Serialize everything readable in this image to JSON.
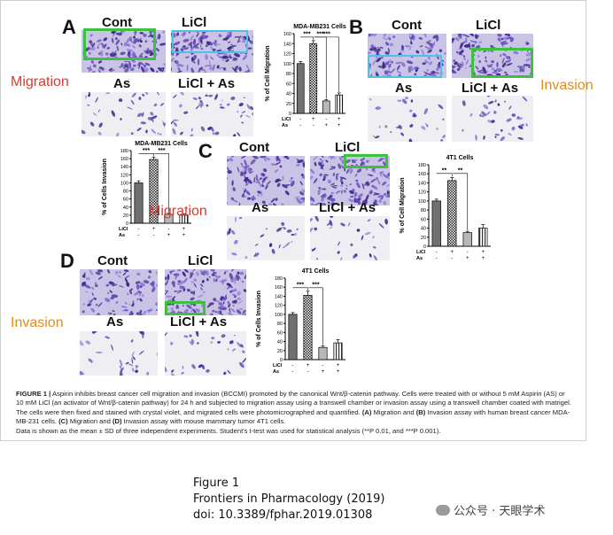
{
  "panels": {
    "A": {
      "letter": "A",
      "img_labels": [
        "Cont",
        "LiCl",
        "As",
        "LiCl + As"
      ],
      "side_label": "Migration"
    },
    "B": {
      "letter": "B",
      "img_labels": [
        "Cont",
        "LiCl",
        "As",
        "LiCl + As"
      ],
      "side_label": "Invasion"
    },
    "C": {
      "letter": "C",
      "img_labels": [
        "Cont",
        "LiCl",
        "As",
        "LiCl + As"
      ],
      "side_label": "Migration"
    },
    "D": {
      "letter": "D",
      "img_labels": [
        "Cont",
        "LiCl",
        "As",
        "LiCl + As"
      ],
      "side_label": "Invasion"
    }
  },
  "colors": {
    "migration_label": "#d93a2b",
    "invasion_label": "#e58a17",
    "highlight_green": "#3fbf3f",
    "highlight_cyan": "#4fc1e8",
    "stain": "#5a3fa8"
  },
  "chart_data": [
    {
      "type": "bar",
      "title": "MDA-MB231 Cells",
      "ylabel": "% of Cell Migration",
      "ylim": [
        0,
        160
      ],
      "yticks": [
        0,
        20,
        40,
        60,
        80,
        100,
        120,
        140,
        160
      ],
      "categories": [
        "Cont",
        "LiCl",
        "As",
        "LiCl + As"
      ],
      "values": [
        100,
        140,
        25,
        37
      ],
      "errors": [
        4,
        6,
        3,
        4
      ],
      "treatment_rows": [
        {
          "name": "LiCl",
          "marks": [
            "-",
            "+",
            "-",
            "+"
          ]
        },
        {
          "name": "As",
          "marks": [
            "-",
            "-",
            "+",
            "+"
          ]
        }
      ],
      "significance": [
        "***",
        "***",
        "***"
      ]
    },
    {
      "type": "bar",
      "title": "MDA-MB231 Cells",
      "ylabel": "% of Cells Invasion",
      "ylim": [
        0,
        180
      ],
      "yticks": [
        0,
        20,
        40,
        60,
        80,
        100,
        120,
        140,
        160,
        180
      ],
      "categories": [
        "Cont",
        "LiCl",
        "As",
        "LiCl + As"
      ],
      "values": [
        100,
        158,
        22,
        20
      ],
      "errors": [
        5,
        6,
        3,
        3
      ],
      "treatment_rows": [
        {
          "name": "LiCl",
          "marks": [
            "-",
            "+",
            "-",
            "+"
          ]
        },
        {
          "name": "As",
          "marks": [
            "-",
            "-",
            "+",
            "+"
          ]
        }
      ],
      "significance": [
        "***",
        "***"
      ]
    },
    {
      "type": "bar",
      "title": "4T1 Cells",
      "ylabel": "% of Cell Migration",
      "ylim": [
        0,
        180
      ],
      "yticks": [
        0,
        20,
        40,
        60,
        80,
        100,
        120,
        140,
        160,
        180
      ],
      "categories": [
        "Cont",
        "LiCl",
        "As",
        "LiCl + As"
      ],
      "values": [
        100,
        145,
        30,
        40
      ],
      "errors": [
        4,
        7,
        3,
        8
      ],
      "treatment_rows": [
        {
          "name": "LiCl",
          "marks": [
            "-",
            "+",
            "-",
            "+"
          ]
        },
        {
          "name": "As",
          "marks": [
            "-",
            "-",
            "+",
            "+"
          ]
        }
      ],
      "significance": [
        "**",
        "**"
      ]
    },
    {
      "type": "bar",
      "title": "4T1 Cells",
      "ylabel": "% of Cells Invasion",
      "ylim": [
        0,
        180
      ],
      "yticks": [
        0,
        20,
        40,
        60,
        80,
        100,
        120,
        140,
        160,
        180
      ],
      "categories": [
        "Cont",
        "LiCl",
        "As",
        "LiCl + As"
      ],
      "values": [
        100,
        142,
        27,
        37
      ],
      "errors": [
        4,
        9,
        3,
        7
      ],
      "treatment_rows": [
        {
          "name": "LiCl",
          "marks": [
            "-",
            "+",
            "-",
            "+"
          ]
        },
        {
          "name": "As",
          "marks": [
            "-",
            "-",
            "+",
            "+"
          ]
        }
      ],
      "significance": [
        "***",
        "***"
      ]
    }
  ],
  "caption": {
    "label": "FIGURE 1 |",
    "text": "Aspirin inhibits breast cancer cell migration and invasion (BCCMI) promoted by the canonical Wnt/β-catenin pathway. Cells were treated with or without 5 mM Aspirin (AS) or 10 mM LiCl (an activator of Wnt/β-catenin pathway) for 24 h and subjected to migration assay using a transwell chamber or invasion assay using a transwell chamber coated with matrigel. The cells were then fixed and stained with crystal violet, and migrated cells were photomicrographed and quantified.",
    "a": "(A)",
    "a_text": "Migration and",
    "b": "(B)",
    "b_text": "Invasion assay with human breast cancer MDA-MB-231 cells.",
    "c": "(C)",
    "c_text": "Migration and",
    "d": "(D)",
    "d_text": "Invasion assay with mouse mammary tumor 4T1 cells.",
    "text2": "Data is shown as the mean ± SD of three independent experiments. Student's t-test was used for statistical analysis (**P 0.01, and ***P 0.001)."
  },
  "footer": {
    "line1": "Figure 1",
    "line2": "Frontiers in Pharmacology (2019)",
    "line3": "doi: 10.3389/fphar.2019.01308"
  },
  "watermark": {
    "text": "公众号 · 天眼学术"
  }
}
